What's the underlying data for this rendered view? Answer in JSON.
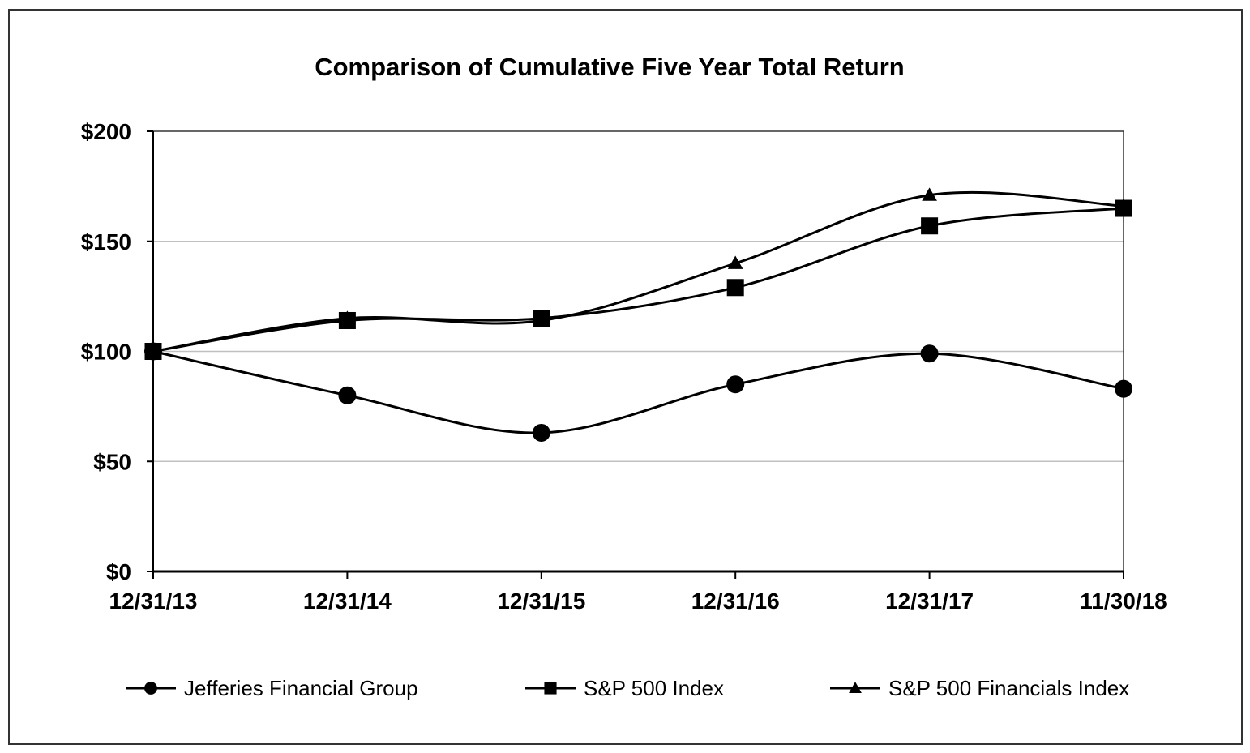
{
  "chart_data": {
    "type": "line",
    "title": "Comparison of Cumulative Five Year Total Return",
    "categories": [
      "12/31/13",
      "12/31/14",
      "12/31/15",
      "12/31/16",
      "12/31/17",
      "11/30/18"
    ],
    "y_ticks": [
      "$0",
      "$50",
      "$100",
      "$150",
      "$200"
    ],
    "y_tick_values": [
      0,
      50,
      100,
      150,
      200
    ],
    "ylim": [
      0,
      200
    ],
    "ylabel": "",
    "xlabel": "",
    "grid": "horizontal",
    "legend_position": "bottom",
    "line_style": "smoothed",
    "series": [
      {
        "name": "Jefferies Financial Group",
        "marker": "circle",
        "color": "#000000",
        "values": [
          100,
          80,
          63,
          85,
          99,
          83
        ]
      },
      {
        "name": "S&P 500 Index",
        "marker": "square",
        "color": "#000000",
        "values": [
          100,
          114,
          115,
          129,
          157,
          165
        ]
      },
      {
        "name": "S&P 500 Financials Index",
        "marker": "triangle",
        "color": "#000000",
        "values": [
          100,
          115,
          114,
          140,
          171,
          166
        ]
      }
    ]
  }
}
